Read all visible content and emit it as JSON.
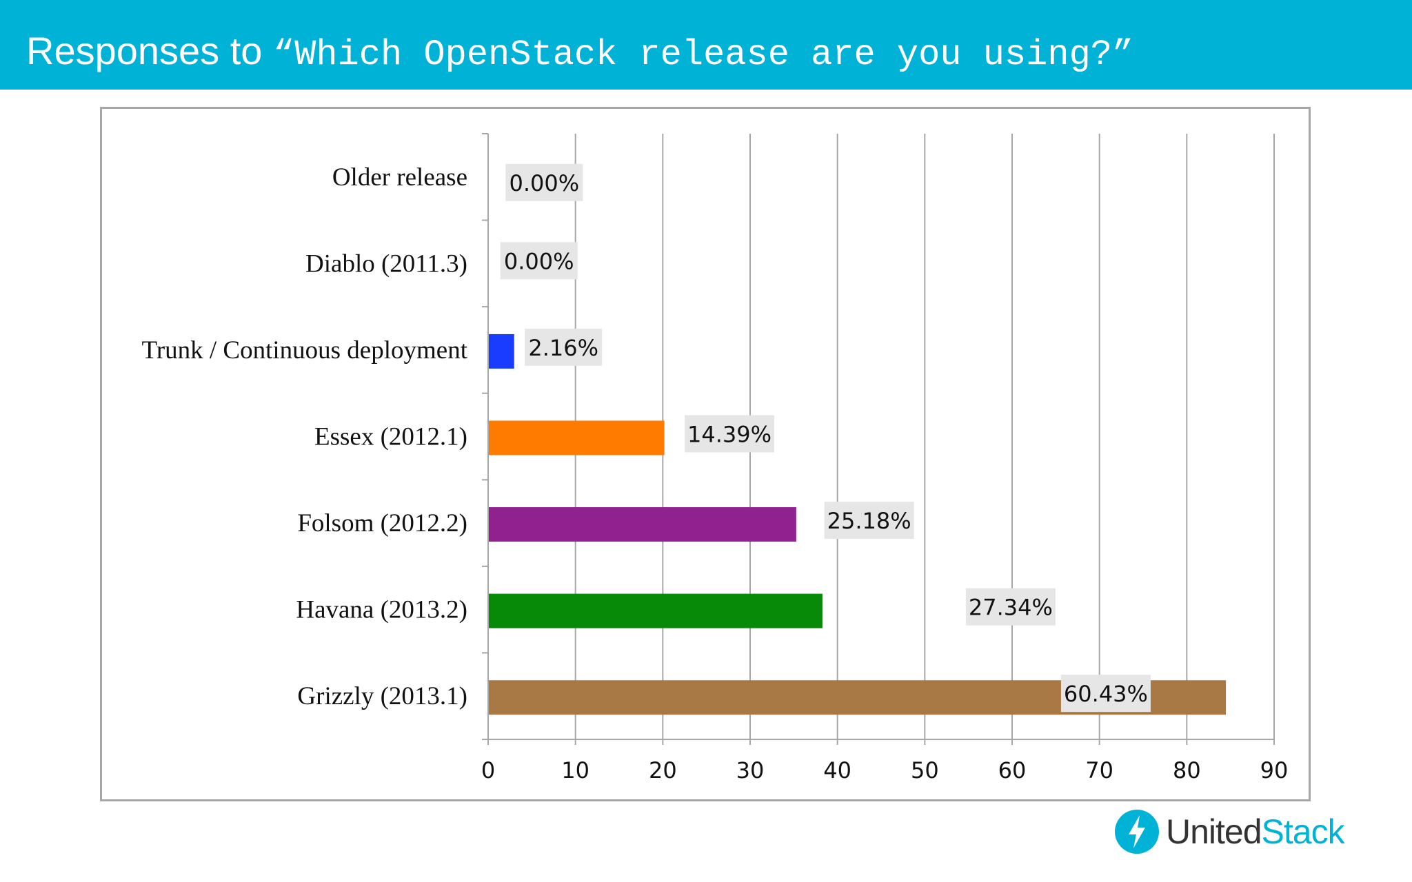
{
  "slide": {
    "title_prefix": "Responses to ",
    "title_question": "“Which OpenStack release are you using?”"
  },
  "logo": {
    "word_1": "United",
    "word_2": "Stack",
    "icon": "lightning-bolt-icon"
  },
  "colors": {
    "header": "#00b2d6",
    "brand": "#00b2d6",
    "label_box": "#e6e6e6",
    "gridline": "#a6a6a6"
  },
  "chart_data": {
    "type": "bar",
    "orientation": "horizontal",
    "categories": [
      "Older release",
      "Diablo (2011.3)",
      "Trunk / Continuous deployment",
      "Essex (2012.1)",
      "Folsom (2012.2)",
      "Havana (2013.2)",
      "Grizzly (2013.1)"
    ],
    "values": [
      0,
      0,
      2.9,
      20.1,
      35.2,
      38.2,
      84.4
    ],
    "data_labels": [
      "0.00%",
      "0.00%",
      "2.16%",
      "14.39%",
      "25.18%",
      "27.34%",
      "60.43%"
    ],
    "bar_colors": [
      "#1a3cff",
      "#1a3cff",
      "#1a3cff",
      "#ff7b00",
      "#922190",
      "#078a07",
      "#a87944"
    ],
    "xlim": [
      0,
      90
    ],
    "xticks": [
      0,
      10,
      20,
      30,
      40,
      50,
      60,
      70,
      80,
      90
    ],
    "grid": "vertical",
    "legend": "none",
    "title": "",
    "xlabel": "",
    "ylabel": ""
  }
}
